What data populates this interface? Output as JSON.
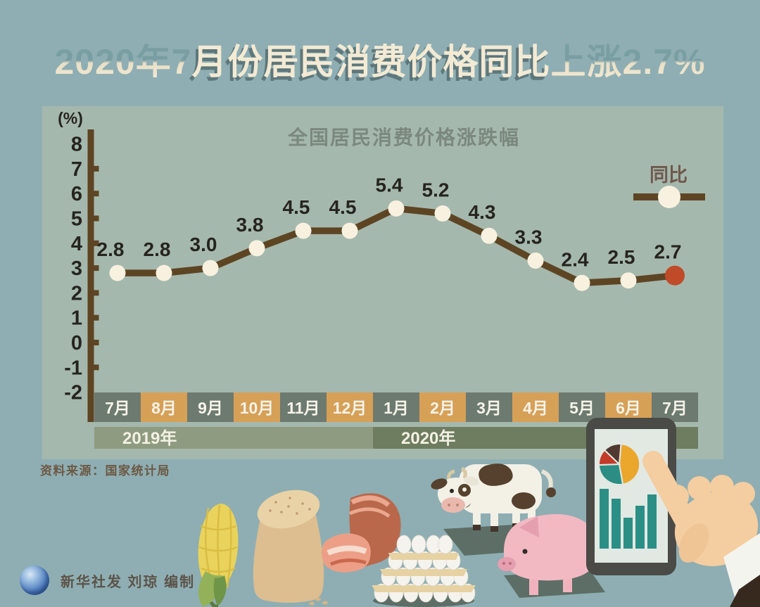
{
  "page": {
    "title": "2020年7月份居民消费价格同比上涨2.7%",
    "title_seg1": "2020年7",
    "title_seg2": "月份居民消费价格同比",
    "title_seg3": "上涨2.7%",
    "source": "资料来源：国家统计局",
    "credit": "新华社发 刘琼 编制"
  },
  "chart_data": {
    "type": "line",
    "title": "全国居民消费价格涨跌幅",
    "unit_label": "(%)",
    "legend": "同比",
    "legend_position": "right",
    "grid": false,
    "categories": [
      "7月",
      "8月",
      "9月",
      "10月",
      "11月",
      "12月",
      "1月",
      "2月",
      "3月",
      "4月",
      "5月",
      "6月",
      "7月"
    ],
    "values": [
      2.8,
      2.8,
      3.0,
      3.8,
      4.5,
      4.5,
      5.4,
      5.2,
      4.3,
      3.3,
      2.4,
      2.5,
      2.7
    ],
    "year_bands": [
      {
        "label": "2019年",
        "span": 6
      },
      {
        "label": "2020年",
        "span": 7
      }
    ],
    "ylim": [
      -2,
      8
    ],
    "yticks": [
      8,
      7,
      6,
      5,
      4,
      3,
      2,
      1,
      0,
      -1,
      -2
    ],
    "highlight_last_point": true
  },
  "colors": {
    "background": "#8eaeb3",
    "panel": "#a5b8ad",
    "title_text": "#f3ead4",
    "line": "#5d4524",
    "marker": "#f8f1e0",
    "marker_last": "#bf4b29",
    "value_text": "#26241e",
    "month_base": "#6d7a70",
    "month_alt": "#d7a057",
    "band_2019": "#8e9b80",
    "band_2020": "#6e7d5f",
    "chart_title_text": "#7b887e",
    "legend_text": "#6f5a4d",
    "source_text": "#6d5843"
  },
  "icons": {
    "bottom_row": [
      "corn-icon",
      "grain-sack-icon",
      "pork-meat-icon",
      "egg-trays-icon",
      "cow-icon",
      "pig-icon",
      "tablet-icon",
      "pointing-hand-icon",
      "xinhua-globe-icon"
    ]
  }
}
